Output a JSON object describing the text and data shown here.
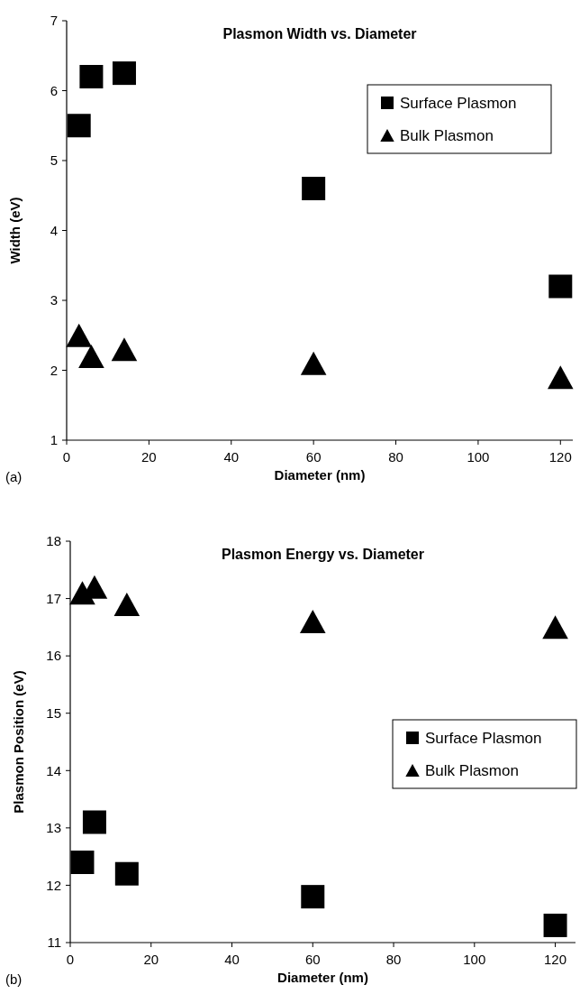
{
  "chart_data": [
    {
      "type": "scatter",
      "title": "Plasmon Width vs. Diameter",
      "xlabel": "Diameter (nm)",
      "ylabel": "Width (eV)",
      "annotations": [
        "(a)"
      ],
      "xlim": [
        0,
        123
      ],
      "xticks": [
        0,
        20,
        40,
        60,
        80,
        100,
        120
      ],
      "ylim": [
        1,
        7
      ],
      "yticks": [
        1,
        2,
        3,
        4,
        5,
        6,
        7
      ],
      "legend": "top right",
      "grid": false,
      "series": [
        {
          "name": "Surface Plasmon",
          "color": "#000000",
          "marker": "square",
          "x": [
            3,
            6,
            14,
            60,
            120
          ],
          "values": [
            5.5,
            6.2,
            6.25,
            4.6,
            3.2
          ]
        },
        {
          "name": "Bulk Plasmon",
          "color": "#000000",
          "marker": "triangle",
          "x": [
            3,
            6,
            14,
            60,
            120
          ],
          "values": [
            2.5,
            2.2,
            2.3,
            2.1,
            1.9
          ]
        }
      ]
    },
    {
      "type": "scatter",
      "title": "Plasmon Energy vs. Diameter",
      "xlabel": "Diameter (nm)",
      "ylabel": "Plasmon Position (eV)",
      "annotations": [
        "(b)"
      ],
      "xlim": [
        0,
        125
      ],
      "xticks": [
        0,
        20,
        40,
        60,
        80,
        100,
        120
      ],
      "ylim": [
        11,
        18
      ],
      "yticks": [
        11,
        12,
        13,
        14,
        15,
        16,
        17,
        18
      ],
      "legend": "right",
      "grid": false,
      "series": [
        {
          "name": "Surface Plasmon",
          "color": "#000000",
          "marker": "square",
          "x": [
            3,
            6,
            14,
            60,
            120
          ],
          "values": [
            12.4,
            13.1,
            12.2,
            11.8,
            11.3
          ]
        },
        {
          "name": "Bulk Plasmon",
          "color": "#000000",
          "marker": "triangle",
          "x": [
            3,
            6,
            14,
            60,
            120
          ],
          "values": [
            17.1,
            17.2,
            16.9,
            16.6,
            16.5
          ]
        }
      ]
    }
  ]
}
